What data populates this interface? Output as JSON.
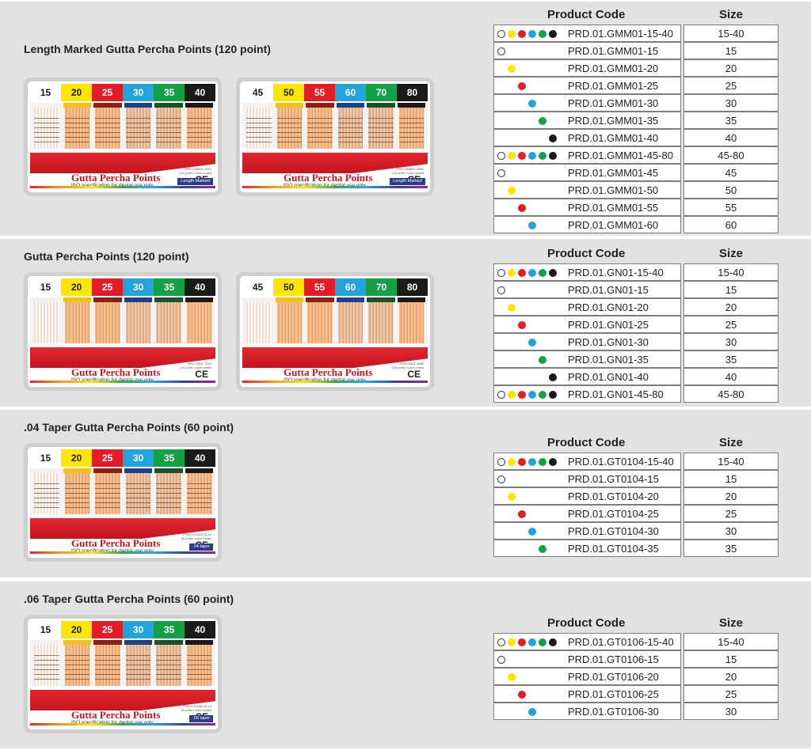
{
  "colors": {
    "white": "#ffffff",
    "yellow": "#ffe600",
    "red": "#e21d26",
    "blue": "#22a3dc",
    "green": "#14a046",
    "black": "#1a1a1a"
  },
  "label": {
    "brand": "Gutta Percha Points",
    "iso": "ISO specification for dental use only",
    "ce": "CE"
  },
  "sections": [
    {
      "title": "Length Marked Gutta Percha Points (120 point)",
      "boxes": [
        {
          "sizes": [
            "15",
            "20",
            "25",
            "30",
            "35",
            "40"
          ],
          "tag": "Length Marked",
          "code_line1": "PRD.GMM01-1540",
          "code_line2": "120 point / color coded"
        },
        {
          "sizes": [
            "45",
            "50",
            "55",
            "60",
            "70",
            "80"
          ],
          "tag": "Length Marked",
          "code_line1": "PRD.GMM01-4580",
          "code_line2": "120 point / color coded"
        }
      ],
      "table": {
        "code_header": "Product Code",
        "size_header": "Size",
        "rows": [
          {
            "dots": "all",
            "code": "PRD.01.GMM01-15-40",
            "size": "15-40"
          },
          {
            "dots": "white",
            "code": "PRD.01.GMM01-15",
            "size": "15"
          },
          {
            "dots": "yellow",
            "code": "PRD.01.GMM01-20",
            "size": "20"
          },
          {
            "dots": "red",
            "code": "PRD.01.GMM01-25",
            "size": "25"
          },
          {
            "dots": "blue",
            "code": "PRD.01.GMM01-30",
            "size": "30"
          },
          {
            "dots": "green",
            "code": "PRD.01.GMM01-35",
            "size": "35"
          },
          {
            "dots": "black",
            "code": "PRD.01.GMM01-40",
            "size": "40"
          },
          {
            "dots": "all",
            "code": "PRD.01.GMM01-45-80",
            "size": "45-80"
          },
          {
            "dots": "white",
            "code": "PRD.01.GMM01-45",
            "size": "45"
          },
          {
            "dots": "yellow",
            "code": "PRD.01.GMM01-50",
            "size": "50"
          },
          {
            "dots": "red",
            "code": "PRD.01.GMM01-55",
            "size": "55"
          },
          {
            "dots": "blue",
            "code": "PRD.01.GMM01-60",
            "size": "60"
          }
        ]
      }
    },
    {
      "title": "Gutta Percha Points (120 point)",
      "boxes": [
        {
          "sizes": [
            "15",
            "20",
            "25",
            "30",
            "35",
            "40"
          ],
          "tag": "",
          "code_line1": "PRD.GN01-1540",
          "code_line2": "120 point / color coded"
        },
        {
          "sizes": [
            "45",
            "50",
            "55",
            "60",
            "70",
            "80"
          ],
          "tag": "",
          "code_line1": "PRD.GN01-4580",
          "code_line2": "120 point / color coded"
        }
      ],
      "table": {
        "code_header": "Product Code",
        "size_header": "Size",
        "rows": [
          {
            "dots": "all",
            "code": "PRD.01.GN01-15-40",
            "size": "15-40"
          },
          {
            "dots": "white",
            "code": "PRD.01.GN01-15",
            "size": "15"
          },
          {
            "dots": "yellow",
            "code": "PRD.01.GN01-20",
            "size": "20"
          },
          {
            "dots": "red",
            "code": "PRD.01.GN01-25",
            "size": "25"
          },
          {
            "dots": "blue",
            "code": "PRD.01.GN01-30",
            "size": "30"
          },
          {
            "dots": "green",
            "code": "PRD.01.GN01-35",
            "size": "35"
          },
          {
            "dots": "black",
            "code": "PRD.01.GN01-40",
            "size": "40"
          },
          {
            "dots": "all",
            "code": "PRD.01.GN01-45-80",
            "size": "45-80"
          }
        ]
      }
    },
    {
      "title": ".04 Taper Gutta Percha  Points (60 point)",
      "boxes": [
        {
          "sizes": [
            "15",
            "20",
            "25",
            "30",
            "35",
            "40"
          ],
          "tag": ".04 taper",
          "code_line1": "PRD.GT0104-15-40",
          "code_line2": "60 point / color coded"
        }
      ],
      "table": {
        "code_header": "Product Code",
        "size_header": "Size",
        "rows": [
          {
            "dots": "all",
            "code": "PRD.01.GT0104-15-40",
            "size": "15-40"
          },
          {
            "dots": "white",
            "code": "PRD.01.GT0104-15",
            "size": "15"
          },
          {
            "dots": "yellow",
            "code": "PRD.01.GT0104-20",
            "size": "20"
          },
          {
            "dots": "red",
            "code": "PRD.01.GT0104-25",
            "size": "25"
          },
          {
            "dots": "blue",
            "code": "PRD.01.GT0104-30",
            "size": "30"
          },
          {
            "dots": "green",
            "code": "PRD.01.GT0104-35",
            "size": "35"
          }
        ]
      }
    },
    {
      "title": ".06 Taper Gutta Percha  Points (60 point)",
      "boxes": [
        {
          "sizes": [
            "15",
            "20",
            "25",
            "30",
            "35",
            "40"
          ],
          "tag": ".06 taper",
          "code_line1": "PRD.GT0106-15-40",
          "code_line2": "60 point / color coded"
        }
      ],
      "table": {
        "code_header": "Product Code",
        "size_header": "Size",
        "rows": [
          {
            "dots": "all",
            "code": "PRD.01.GT0106-15-40",
            "size": "15-40"
          },
          {
            "dots": "white",
            "code": "PRD.01.GT0106-15",
            "size": "15"
          },
          {
            "dots": "yellow",
            "code": "PRD.01.GT0106-20",
            "size": "20"
          },
          {
            "dots": "red",
            "code": "PRD.01.GT0106-25",
            "size": "25"
          },
          {
            "dots": "blue",
            "code": "PRD.01.GT0106-30",
            "size": "30"
          }
        ]
      }
    }
  ]
}
